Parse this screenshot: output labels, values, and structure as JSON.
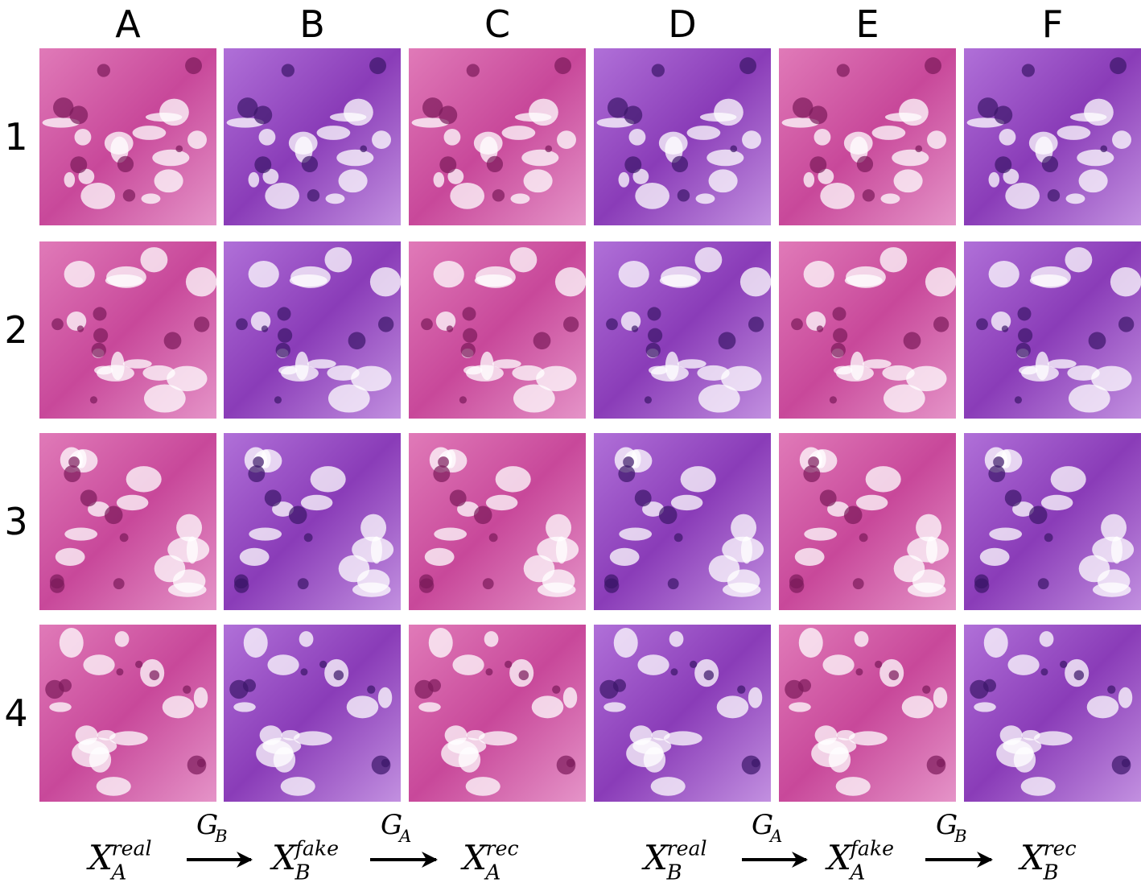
{
  "columns": [
    "A",
    "B",
    "C",
    "D",
    "E",
    "F"
  ],
  "rows": [
    "1",
    "2",
    "3",
    "4"
  ],
  "mappings": [
    {
      "input": {
        "base": "X",
        "sub": "A",
        "sup": "real"
      },
      "generator1": {
        "base": "G",
        "sub": "B"
      },
      "intermediate": {
        "base": "X",
        "sub": "B",
        "sup": "fake"
      },
      "generator2": {
        "base": "G",
        "sub": "A"
      },
      "output": {
        "base": "X",
        "sub": "A",
        "sup": "rec"
      }
    },
    {
      "input": {
        "base": "X",
        "sub": "B",
        "sup": "real"
      },
      "generator1": {
        "base": "G",
        "sub": "A"
      },
      "intermediate": {
        "base": "X",
        "sub": "A",
        "sup": "fake"
      },
      "generator2": {
        "base": "G",
        "sub": "B"
      },
      "output": {
        "base": "X",
        "sub": "B",
        "sup": "rec"
      }
    }
  ]
}
